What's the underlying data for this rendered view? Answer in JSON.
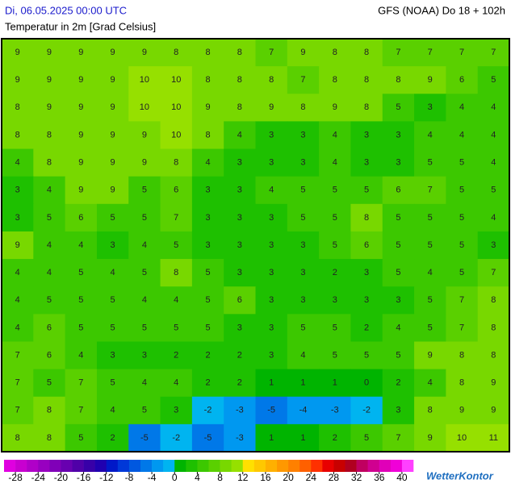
{
  "header": {
    "date": "Di, 06.05.2025 00:00 UTC",
    "parameter": "Temperatur in 2m [Grad Celsius]",
    "model": "GFS (NOAA) Do 18 + 102h"
  },
  "map": {
    "values": [
      [
        9,
        9,
        9,
        9,
        9,
        8,
        8,
        8,
        7,
        9,
        8,
        8,
        7,
        7,
        7,
        7
      ],
      [
        9,
        9,
        9,
        9,
        10,
        10,
        8,
        8,
        8,
        7,
        8,
        8,
        8,
        9,
        6,
        5
      ],
      [
        8,
        9,
        9,
        9,
        10,
        10,
        9,
        8,
        9,
        8,
        9,
        8,
        5,
        3,
        4,
        4
      ],
      [
        8,
        8,
        9,
        9,
        9,
        10,
        8,
        4,
        3,
        3,
        4,
        3,
        3,
        4,
        4,
        4
      ],
      [
        4,
        8,
        9,
        9,
        9,
        8,
        4,
        3,
        3,
        3,
        4,
        3,
        3,
        5,
        5,
        4
      ],
      [
        3,
        4,
        9,
        9,
        5,
        6,
        3,
        3,
        4,
        5,
        5,
        5,
        6,
        7,
        5,
        5
      ],
      [
        3,
        5,
        6,
        5,
        5,
        7,
        3,
        3,
        3,
        5,
        5,
        8,
        5,
        5,
        5,
        4
      ],
      [
        9,
        4,
        4,
        3,
        4,
        5,
        3,
        3,
        3,
        3,
        5,
        6,
        5,
        5,
        5,
        3
      ],
      [
        4,
        4,
        5,
        4,
        5,
        8,
        5,
        3,
        3,
        3,
        2,
        3,
        5,
        4,
        5,
        7
      ],
      [
        4,
        5,
        5,
        5,
        4,
        4,
        5,
        6,
        3,
        3,
        3,
        3,
        3,
        5,
        7,
        8
      ],
      [
        4,
        6,
        5,
        5,
        5,
        5,
        5,
        3,
        3,
        5,
        5,
        2,
        4,
        5,
        7,
        8
      ],
      [
        7,
        6,
        4,
        3,
        3,
        2,
        2,
        2,
        3,
        4,
        5,
        5,
        5,
        9,
        8,
        8
      ],
      [
        7,
        5,
        7,
        5,
        4,
        4,
        2,
        2,
        1,
        1,
        1,
        0,
        2,
        4,
        8,
        9
      ],
      [
        7,
        8,
        7,
        4,
        5,
        3,
        -2,
        -3,
        -5,
        -4,
        -3,
        -2,
        3,
        8,
        9,
        9
      ],
      [
        8,
        8,
        5,
        2,
        -5,
        -2,
        -5,
        -3,
        1,
        1,
        2,
        5,
        7,
        9,
        10,
        11
      ]
    ]
  },
  "colorbar": {
    "range": [
      -30,
      42
    ],
    "colors": [
      "#e000e0",
      "#c800d0",
      "#b000c8",
      "#9800c0",
      "#8000b8",
      "#6800b0",
      "#5000a8",
      "#3800a8",
      "#2000b0",
      "#0018c8",
      "#0038d8",
      "#0058e0",
      "#0078e8",
      "#0098f0",
      "#00b4f0",
      "#00b400",
      "#1ec000",
      "#3cc800",
      "#5ad000",
      "#78d800",
      "#96e000",
      "#ffe000",
      "#ffc800",
      "#ffb000",
      "#ff9800",
      "#ff8000",
      "#ff6000",
      "#ff3000",
      "#e80000",
      "#c80000",
      "#b00020",
      "#c00060",
      "#d00090",
      "#e000b8",
      "#f000d8",
      "#ff40ff"
    ],
    "ticks": [
      -28,
      -24,
      -20,
      -16,
      -12,
      -8,
      -4,
      0,
      4,
      8,
      12,
      16,
      20,
      24,
      28,
      32,
      36,
      40
    ]
  },
  "logo": "WetterKontor"
}
